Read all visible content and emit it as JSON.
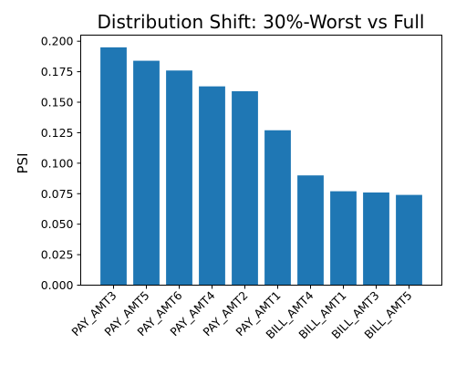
{
  "chart_data": {
    "type": "bar",
    "title": "Distribution Shift: 30%-Worst vs Full",
    "xlabel": "",
    "ylabel": "PSI",
    "categories": [
      "PAY_AMT3",
      "PAY_AMT5",
      "PAY_AMT6",
      "PAY_AMT4",
      "PAY_AMT2",
      "PAY_AMT1",
      "BILL_AMT4",
      "BILL_AMT1",
      "BILL_AMT3",
      "BILL_AMT5"
    ],
    "values": [
      0.195,
      0.184,
      0.176,
      0.163,
      0.159,
      0.127,
      0.09,
      0.077,
      0.076,
      0.074
    ],
    "ylim": [
      0,
      0.205
    ],
    "yticks": [
      0.0,
      0.025,
      0.05,
      0.075,
      0.1,
      0.125,
      0.15,
      0.175,
      0.2
    ],
    "ytick_labels": [
      "0.000",
      "0.025",
      "0.050",
      "0.075",
      "0.100",
      "0.125",
      "0.150",
      "0.175",
      "0.200"
    ],
    "bar_color": "#1f77b4",
    "grid": false,
    "legend": "none"
  }
}
